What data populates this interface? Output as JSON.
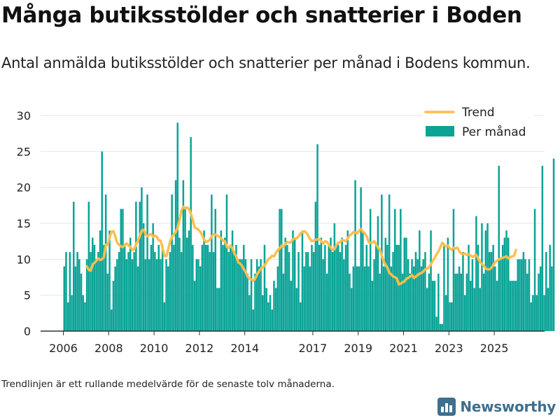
{
  "title": "Många butiksstölder och snatterier i Boden",
  "subtitle": "Antal anmälda butiksstölder och snatterier per månad i Bodens kommun.",
  "footnote": "Trendlinjen är ett rullande medelvärde för de senaste tolv månaderna.",
  "brand": {
    "name": "Newsworthy",
    "icon": "bar-chart-logo-icon"
  },
  "colors": {
    "bar": "#0aa396",
    "trend": "#ffbe4d",
    "axis": "#333333",
    "grid": "#e6e6e6",
    "brand": "#3f6f8f"
  },
  "chart_data": {
    "type": "bar",
    "x_type": "month",
    "start_month": "2006-01",
    "yticks": [
      0,
      5,
      10,
      15,
      20,
      25,
      30
    ],
    "ylim": [
      0,
      30
    ],
    "xticks": [
      "2006",
      "2008",
      "2010",
      "2012",
      "2014",
      "2017",
      "2019",
      "2021",
      "2023",
      "2025"
    ],
    "legend_position": "top-right",
    "grid": true,
    "series": [
      {
        "name": "Per månad",
        "kind": "bar",
        "values": [
          9,
          11,
          4,
          11,
          5,
          18,
          9,
          11,
          10,
          8,
          5,
          4,
          10,
          18,
          11,
          13,
          12,
          10,
          11,
          14,
          25,
          12,
          19,
          8,
          14,
          3,
          7,
          9,
          10,
          11,
          17,
          17,
          12,
          10,
          11,
          13,
          10,
          11,
          18,
          9,
          18,
          20,
          15,
          10,
          19,
          10,
          12,
          15,
          11,
          10,
          12,
          10,
          12,
          4,
          10,
          9,
          11,
          19,
          12,
          21,
          29,
          13,
          11,
          21,
          17,
          13,
          14,
          27,
          12,
          7,
          10,
          10,
          9,
          12,
          14,
          12,
          12,
          11,
          19,
          11,
          17,
          6,
          6,
          14,
          12,
          13,
          19,
          11,
          12,
          14,
          11,
          12,
          10,
          10,
          10,
          12,
          10,
          8,
          5,
          10,
          3,
          8,
          10,
          9,
          10,
          5,
          12,
          6,
          4,
          5,
          3,
          7,
          6,
          9,
          17,
          17,
          8,
          13,
          12,
          11,
          7,
          14,
          13,
          6,
          11,
          4,
          14,
          9,
          11,
          11,
          9,
          12,
          11,
          18,
          26,
          12,
          13,
          10,
          12,
          8,
          12,
          13,
          11,
          15,
          12,
          12,
          11,
          13,
          10,
          12,
          14,
          8,
          6,
          9,
          21,
          9,
          9,
          20,
          14,
          9,
          12,
          9,
          17,
          7,
          10,
          12,
          16,
          8,
          19,
          9,
          13,
          12,
          19,
          9,
          11,
          17,
          12,
          12,
          17,
          8,
          13,
          13,
          10,
          8,
          10,
          9,
          11,
          10,
          14,
          9,
          10,
          11,
          6,
          8,
          14,
          7,
          7,
          2,
          8,
          1,
          1,
          12,
          5,
          13,
          4,
          4,
          17,
          8,
          8,
          9,
          8,
          11,
          5,
          8,
          12,
          7,
          10,
          6,
          16,
          12,
          6,
          15,
          8,
          14,
          15,
          11,
          11,
          12,
          9,
          7,
          23,
          10,
          12,
          13,
          14,
          13,
          7,
          7,
          7,
          7,
          10,
          10,
          10,
          11,
          10,
          8,
          10,
          4,
          5,
          17,
          5,
          8,
          9,
          23,
          5,
          11,
          6,
          12,
          9,
          24
        ]
      },
      {
        "name": "Trend",
        "kind": "line",
        "start_index": 12,
        "values": [
          9,
          8.5,
          8.4,
          9.3,
          9.5,
          9.8,
          10.1,
          9.9,
          10,
          10.3,
          12,
          12,
          13.1,
          13.8,
          13.9,
          13.2,
          12.3,
          12,
          11.8,
          11.7,
          12,
          12.2,
          11.9,
          11.7,
          11.3,
          11.4,
          12.1,
          12.6,
          13.3,
          14,
          14.1,
          13.5,
          13.2,
          13.4,
          13.5,
          13.1,
          13.3,
          13.1,
          12.6,
          12.6,
          11.5,
          10.5,
          10.4,
          11.4,
          12.5,
          13.1,
          13.5,
          13.8,
          14.4,
          15.5,
          16.8,
          17.3,
          17.1,
          17.2,
          17,
          16.3,
          15.4,
          14.4,
          14.3,
          14.1,
          13.8,
          13.3,
          12.7,
          12.4,
          12.5,
          12.7,
          13.2,
          13.5,
          13.4,
          13.3,
          13.1,
          12.9,
          12.6,
          12.5,
          11.7,
          11.6,
          11.9,
          11.5,
          10.8,
          10.4,
          9.6,
          9.4,
          9.1,
          8.6,
          8.2,
          7.6,
          7.3,
          7.2,
          7,
          7.3,
          7.9,
          8.3,
          8.7,
          8.9,
          9.1,
          9.6,
          10,
          10.2,
          10.5,
          10.4,
          10.9,
          11.3,
          11.5,
          11.9,
          11.7,
          12.2,
          12.4,
          12.3,
          12.4,
          12.8,
          12.9,
          12.9,
          13.2,
          13.6,
          13.8,
          13.9,
          13.7,
          13.3,
          12.8,
          12.5,
          12.6,
          12.7,
          12.8,
          12.8,
          12.5,
          12.2,
          12.5,
          12.4,
          12,
          11.6,
          11.3,
          11.4,
          12,
          12.3,
          12.4,
          12.7,
          12.6,
          12.5,
          12.9,
          13.3,
          13.5,
          13.8,
          13.7,
          13.6,
          14,
          14.2,
          13.8,
          13.6,
          13.2,
          12.4,
          12.3,
          12.3,
          12.5,
          12.1,
          11.6,
          11.3,
          10.5,
          9.7,
          9.2,
          8.8,
          8.1,
          7.9,
          7.6,
          7.5,
          7.3,
          6.5,
          6.6,
          6.8,
          6.9,
          7.3,
          7.4,
          7.6,
          7.8,
          7.4,
          7.6,
          7.8,
          8,
          8.1,
          8.3,
          8.6,
          8.7,
          8.9,
          9.3,
          9.8,
          10.2,
          10.7,
          11.1,
          11.7,
          12.3,
          12,
          11.8,
          11.9,
          11.5,
          11.3,
          11.6,
          11.5,
          11.6,
          11.1,
          10.8,
          10.7,
          10.8,
          10.6,
          10.7,
          10.5,
          10.3,
          10.5,
          10.6,
          10.1,
          9.6,
          9.3,
          9.1,
          8.7,
          8.6,
          8.6,
          8.8,
          9.2,
          9.6,
          9.8,
          10,
          10.1,
          10.2,
          10.3,
          10.4,
          10.1,
          10.3,
          10.4,
          10.5,
          11.3
        ]
      }
    ]
  }
}
